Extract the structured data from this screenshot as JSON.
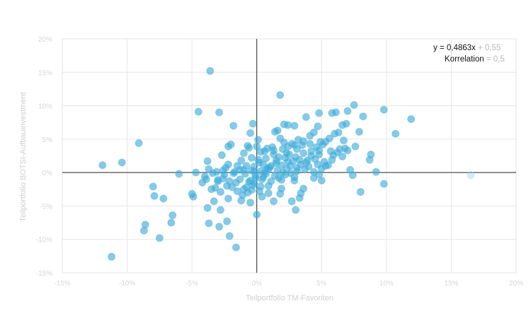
{
  "chart_data": {
    "type": "scatter",
    "xlabel": "Teilportfolio TM-Favoriten",
    "ylabel": "Teilportfolio BOTSI-Aufbauinvestment",
    "xlim": [
      -15,
      20
    ],
    "ylim": [
      -15,
      20
    ],
    "x_ticks": [
      "-15%",
      "-10%",
      "-5%",
      "0%",
      "5%",
      "10%",
      "15%",
      "20%"
    ],
    "y_ticks": [
      "-15%",
      "-10%",
      "-5%",
      "0%",
      "5%",
      "10%",
      "15%",
      "20%"
    ],
    "grid": true,
    "annotation": {
      "equation_strong": "y = 0,4863x",
      "equation_muted": " + 0,55",
      "correlation_strong": "Korrelation",
      "correlation_muted": " = 0,5"
    },
    "colors": {
      "points": "#3aa9d9",
      "zero_lines": "#222222",
      "grid": "#e6e6e6"
    },
    "points": [
      [
        -3.6,
        15.2
      ],
      [
        1.8,
        11.6
      ],
      [
        7.5,
        10.1
      ],
      [
        9.8,
        9.4
      ],
      [
        11.9,
        8.0
      ],
      [
        -4.5,
        9.1
      ],
      [
        -2.9,
        9.0
      ],
      [
        4.8,
        8.9
      ],
      [
        5.8,
        8.9
      ],
      [
        6.1,
        9.0
      ],
      [
        7.0,
        9.2
      ],
      [
        3.8,
        8.3
      ],
      [
        8.2,
        8.4
      ],
      [
        -1.8,
        7.0
      ],
      [
        -0.3,
        7.3
      ],
      [
        2.1,
        7.2
      ],
      [
        2.4,
        7.1
      ],
      [
        2.9,
        7.0
      ],
      [
        4.7,
        6.9
      ],
      [
        6.6,
        7.1
      ],
      [
        6.9,
        7.3
      ],
      [
        -0.5,
        5.9
      ],
      [
        1.4,
        6.1
      ],
      [
        1.6,
        6.3
      ],
      [
        4.4,
        6.0
      ],
      [
        6.0,
        5.8
      ],
      [
        7.9,
        6.1
      ],
      [
        10.7,
        5.8
      ],
      [
        -2.0,
        4.2
      ],
      [
        -0.7,
        4.0
      ],
      [
        0.1,
        4.9
      ],
      [
        1.8,
        5.1
      ],
      [
        2.7,
        4.3
      ],
      [
        3.6,
        4.7
      ],
      [
        4.1,
        4.3
      ],
      [
        4.9,
        4.6
      ],
      [
        5.3,
        4.6
      ],
      [
        6.7,
        4.8
      ],
      [
        -9.1,
        4.4
      ],
      [
        -2.2,
        3.9
      ],
      [
        -0.6,
        3.7
      ],
      [
        0.3,
        3.1
      ],
      [
        0.8,
        3.6
      ],
      [
        1.3,
        3.3
      ],
      [
        2.0,
        3.5
      ],
      [
        2.5,
        2.7
      ],
      [
        3.1,
        3.5
      ],
      [
        3.6,
        2.9
      ],
      [
        4.2,
        3.2
      ],
      [
        4.8,
        3.3
      ],
      [
        5.7,
        3.2
      ],
      [
        6.2,
        3.0
      ],
      [
        7.0,
        3.3
      ],
      [
        8.8,
        2.7
      ],
      [
        -2.7,
        2.6
      ],
      [
        -1.2,
        1.8
      ],
      [
        -0.4,
        2.2
      ],
      [
        0.1,
        1.9
      ],
      [
        0.7,
        2.1
      ],
      [
        1.5,
        1.8
      ],
      [
        2.2,
        2.2
      ],
      [
        2.8,
        1.7
      ],
      [
        3.3,
        1.9
      ],
      [
        3.8,
        1.5
      ],
      [
        4.5,
        2.0
      ],
      [
        5.2,
        1.6
      ],
      [
        5.8,
        1.9
      ],
      [
        8.7,
        1.9
      ],
      [
        -10.4,
        1.5
      ],
      [
        -11.9,
        1.1
      ],
      [
        -3.8,
        1.7
      ],
      [
        -2.2,
        1.2
      ],
      [
        -1.5,
        1.0
      ],
      [
        -0.8,
        1.0
      ],
      [
        -0.2,
        0.9
      ],
      [
        0.5,
        1.2
      ],
      [
        1.1,
        1.0
      ],
      [
        1.9,
        1.1
      ],
      [
        2.6,
        1.0
      ],
      [
        3.4,
        1.2
      ],
      [
        4.0,
        0.9
      ],
      [
        4.7,
        1.2
      ],
      [
        5.3,
        1.0
      ],
      [
        -3.7,
        0.5
      ],
      [
        -2.6,
        0.3
      ],
      [
        -1.7,
        0.1
      ],
      [
        -1.0,
        0.4
      ],
      [
        -0.4,
        0.3
      ],
      [
        0.3,
        0.2
      ],
      [
        0.9,
        0.5
      ],
      [
        1.6,
        0.3
      ],
      [
        2.3,
        0.6
      ],
      [
        3.1,
        0.2
      ],
      [
        3.7,
        0.5
      ],
      [
        4.4,
        0.1
      ],
      [
        7.2,
        0.4
      ],
      [
        9.2,
        0.1
      ],
      [
        -6.0,
        -0.2
      ],
      [
        -4.7,
        0.0
      ],
      [
        -3.4,
        -0.1
      ],
      [
        -2.5,
        -0.3
      ],
      [
        -1.8,
        -0.1
      ],
      [
        -0.9,
        -0.2
      ],
      [
        -0.1,
        -0.4
      ],
      [
        0.7,
        -0.2
      ],
      [
        1.4,
        -0.5
      ],
      [
        2.2,
        -0.3
      ],
      [
        2.9,
        -0.7
      ],
      [
        4.8,
        -0.3
      ],
      [
        7.4,
        -0.4
      ],
      [
        -3.9,
        -1.0
      ],
      [
        -3.0,
        -1.1
      ],
      [
        -2.1,
        -1.3
      ],
      [
        -1.3,
        -1.0
      ],
      [
        -0.5,
        -1.2
      ],
      [
        0.4,
        -1.0
      ],
      [
        1.1,
        -1.3
      ],
      [
        1.9,
        -1.1
      ],
      [
        2.9,
        -1.2
      ],
      [
        5.0,
        -1.2
      ],
      [
        -3.5,
        -2.5
      ],
      [
        -2.8,
        -2.9
      ],
      [
        -1.9,
        -2.2
      ],
      [
        -1.0,
        -2.5
      ],
      [
        -0.3,
        -1.9
      ],
      [
        0.2,
        -2.8
      ],
      [
        0.9,
        -3.1
      ],
      [
        1.8,
        -3.2
      ],
      [
        3.6,
        -2.4
      ],
      [
        8.0,
        -2.9
      ],
      [
        9.8,
        -1.7
      ],
      [
        -8.0,
        -2.1
      ],
      [
        -7.9,
        -3.5
      ],
      [
        -7.2,
        -3.9
      ],
      [
        -5.0,
        -3.2
      ],
      [
        -4.9,
        -3.6
      ],
      [
        -3.3,
        -4.3
      ],
      [
        -2.2,
        -3.9
      ],
      [
        -1.2,
        -4.2
      ],
      [
        -0.5,
        -4.5
      ],
      [
        1.3,
        -4.3
      ],
      [
        2.7,
        -4.3
      ],
      [
        3.4,
        -3.1
      ],
      [
        -3.8,
        -5.3
      ],
      [
        -2.8,
        -5.6
      ],
      [
        -2.3,
        -7.3
      ],
      [
        0.0,
        -6.3
      ],
      [
        3.0,
        -5.6
      ],
      [
        -6.5,
        -6.4
      ],
      [
        -6.6,
        -7.5
      ],
      [
        -3.7,
        -7.6
      ],
      [
        -2.9,
        -8.1
      ],
      [
        -8.6,
        -7.8
      ],
      [
        -8.7,
        -8.7
      ],
      [
        -7.5,
        -9.8
      ],
      [
        -2.1,
        -9.5
      ],
      [
        -1.6,
        -11.2
      ],
      [
        -11.2,
        -12.6
      ],
      [
        -3.0,
        -1.3
      ],
      [
        -2.3,
        -2.0
      ],
      [
        -1.5,
        -2.8
      ],
      [
        -0.8,
        -2.2
      ],
      [
        0.5,
        -0.7
      ],
      [
        1.0,
        0.8
      ],
      [
        1.7,
        2.3
      ],
      [
        2.4,
        3.9
      ],
      [
        3.2,
        4.9
      ],
      [
        5.6,
        5.1
      ],
      [
        6.4,
        3.5
      ],
      [
        -1.0,
        2.9
      ],
      [
        0.0,
        3.9
      ],
      [
        0.6,
        0.0
      ],
      [
        -0.7,
        -3.0
      ],
      [
        -4.2,
        -1.5
      ],
      [
        -3.2,
        -2.3
      ],
      [
        2.0,
        0.0
      ],
      [
        2.6,
        -0.1
      ],
      [
        3.9,
        1.8
      ],
      [
        4.2,
        2.5
      ],
      [
        1.3,
        2.7
      ],
      [
        -0.2,
        -1.6
      ],
      [
        0.6,
        3.2
      ],
      [
        5.5,
        1.1
      ],
      [
        6.8,
        3.6
      ],
      [
        -1.3,
        0.4
      ],
      [
        -4.0,
        -0.6
      ],
      [
        -2.6,
        -0.9
      ],
      [
        -1.6,
        -1.5
      ],
      [
        0.2,
        1.5
      ],
      [
        1.5,
        1.4
      ],
      [
        2.9,
        4.1
      ],
      [
        -0.2,
        0.2
      ],
      [
        0.4,
        -3.6
      ],
      [
        3.3,
        -3.8
      ],
      [
        5.0,
        0.6
      ],
      [
        4.1,
        5.5
      ],
      [
        6.3,
        6.0
      ],
      [
        -0.6,
        -1.4
      ],
      [
        0.9,
        -2.0
      ],
      [
        1.7,
        -0.8
      ],
      [
        2.4,
        1.6
      ],
      [
        3.0,
        2.3
      ],
      [
        4.6,
        3.8
      ],
      [
        5.1,
        4.2
      ],
      [
        6.6,
        2.4
      ],
      [
        -2.4,
        0.7
      ],
      [
        -0.1,
        -0.8
      ],
      [
        0.8,
        0.6
      ],
      [
        1.2,
        3.8
      ],
      [
        2.1,
        4.5
      ],
      [
        3.5,
        4.1
      ],
      [
        5.9,
        2.6
      ],
      [
        7.6,
        3.9
      ],
      [
        4.4,
        -0.8
      ],
      [
        1.9,
        -2.4
      ],
      [
        0.3,
        -2.1
      ],
      [
        -1.1,
        -3.4
      ],
      [
        -0.4,
        -2.6
      ],
      [
        -3.1,
        0.1
      ],
      [
        3.1,
        0.7
      ],
      [
        2.3,
        2.9
      ],
      [
        4.8,
        2.7
      ]
    ],
    "faded_points": [
      [
        16.5,
        -0.4
      ]
    ]
  }
}
